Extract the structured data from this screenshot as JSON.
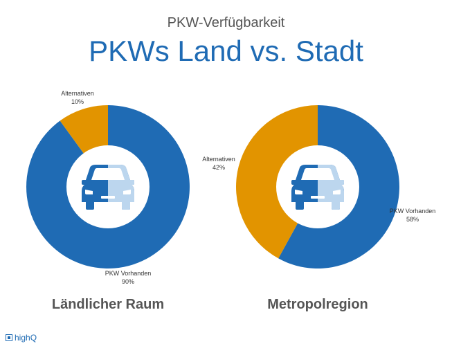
{
  "header": {
    "subtitle": "PKW-Verfügbarkeit",
    "title": "PKWs Land vs. Stadt"
  },
  "colors": {
    "primary": "#1f6bb4",
    "secondary": "#e29400",
    "icon_light": "#bcd6ee"
  },
  "icons": {
    "center": "car-icon",
    "logo": "highq-logo"
  },
  "chart_data": [
    {
      "type": "pie",
      "title": "Ländlicher Raum",
      "donut": true,
      "slices": [
        {
          "name": "PKW Vorhanden",
          "value": 90,
          "label": "90%",
          "color": "#1f6bb4"
        },
        {
          "name": "Alternativen",
          "value": 10,
          "label": "10%",
          "color": "#e29400"
        }
      ]
    },
    {
      "type": "pie",
      "title": "Metropolregion",
      "donut": true,
      "slices": [
        {
          "name": "PKW Vorhanden",
          "value": 58,
          "label": "58%",
          "color": "#1f6bb4"
        },
        {
          "name": "Alternativen",
          "value": 42,
          "label": "42%",
          "color": "#e29400"
        }
      ]
    }
  ],
  "footer": {
    "brand": "highQ"
  }
}
